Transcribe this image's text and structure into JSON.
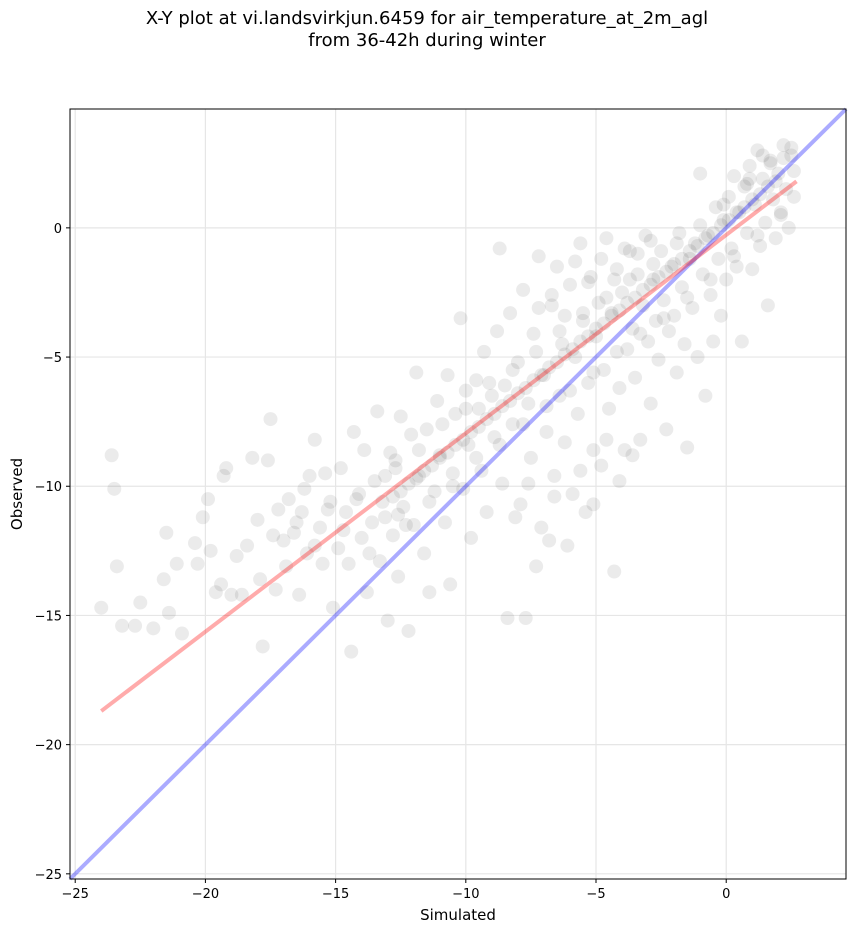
{
  "chart_data": {
    "type": "scatter",
    "title_line1": "X-Y plot at vi.landsvirkjun.6459 for air_temperature_at_2m_agl",
    "title_line2": "from 36-42h during winter",
    "xlabel": "Simulated",
    "ylabel": "Observed",
    "xlim": [
      -25.2,
      4.6
    ],
    "ylim": [
      -25.2,
      4.6
    ],
    "xticks": [
      -25,
      -20,
      -15,
      -10,
      -5,
      0
    ],
    "yticks": [
      -25,
      -20,
      -15,
      -10,
      -5,
      0
    ],
    "xtick_labels": [
      "−25",
      "−20",
      "−15",
      "−10",
      "−5",
      "0"
    ],
    "ytick_labels": [
      "−25",
      "−20",
      "−15",
      "−10",
      "−5",
      "0"
    ],
    "grid": true,
    "point_color": "#000000",
    "point_opacity": 0.08,
    "lines": [
      {
        "x": [
          -25.2,
          4.6
        ],
        "y": [
          -25.2,
          4.6
        ],
        "color": "#0000ff",
        "opacity": 0.33
      },
      {
        "x": [
          -24.0,
          2.7
        ],
        "y": [
          -18.7,
          1.8
        ],
        "color": "#ff0000",
        "opacity": 0.33
      }
    ],
    "points": [
      [
        -23.6,
        -8.8
      ],
      [
        -23.5,
        -10.1
      ],
      [
        -23.4,
        -13.1
      ],
      [
        -24.0,
        -14.7
      ],
      [
        -23.2,
        -15.4
      ],
      [
        -22.7,
        -15.4
      ],
      [
        -22.5,
        -14.5
      ],
      [
        -22.0,
        -15.5
      ],
      [
        -21.6,
        -13.6
      ],
      [
        -21.4,
        -14.9
      ],
      [
        -21.5,
        -11.8
      ],
      [
        -21.1,
        -13.0
      ],
      [
        -20.9,
        -15.7
      ],
      [
        -20.4,
        -12.2
      ],
      [
        -20.3,
        -13.0
      ],
      [
        -20.1,
        -11.2
      ],
      [
        -19.9,
        -10.5
      ],
      [
        -19.8,
        -12.5
      ],
      [
        -19.6,
        -14.1
      ],
      [
        -19.4,
        -13.8
      ],
      [
        -19.3,
        -9.6
      ],
      [
        -19.2,
        -9.3
      ],
      [
        -19.0,
        -14.2
      ],
      [
        -18.8,
        -12.7
      ],
      [
        -18.6,
        -14.2
      ],
      [
        -18.4,
        -12.3
      ],
      [
        -18.2,
        -8.9
      ],
      [
        -18.0,
        -11.3
      ],
      [
        -17.9,
        -13.6
      ],
      [
        -17.8,
        -16.2
      ],
      [
        -17.6,
        -9.0
      ],
      [
        -17.5,
        -7.4
      ],
      [
        -17.4,
        -11.9
      ],
      [
        -17.3,
        -14.0
      ],
      [
        -17.0,
        -12.1
      ],
      [
        -16.9,
        -13.1
      ],
      [
        -16.8,
        -10.5
      ],
      [
        -16.5,
        -11.4
      ],
      [
        -16.4,
        -14.2
      ],
      [
        -16.3,
        -11.0
      ],
      [
        -16.1,
        -12.6
      ],
      [
        -16.0,
        -9.6
      ],
      [
        -15.8,
        -8.2
      ],
      [
        -15.6,
        -11.6
      ],
      [
        -15.5,
        -13.0
      ],
      [
        -15.4,
        -9.5
      ],
      [
        -15.2,
        -10.6
      ],
      [
        -15.1,
        -14.7
      ],
      [
        -14.9,
        -12.4
      ],
      [
        -14.8,
        -9.3
      ],
      [
        -14.6,
        -11.0
      ],
      [
        -14.5,
        -13.0
      ],
      [
        -14.4,
        -16.4
      ],
      [
        -14.3,
        -7.9
      ],
      [
        -14.1,
        -10.3
      ],
      [
        -14.0,
        -12.0
      ],
      [
        -13.9,
        -8.6
      ],
      [
        -13.8,
        -14.1
      ],
      [
        -13.6,
        -11.4
      ],
      [
        -13.5,
        -9.8
      ],
      [
        -13.4,
        -7.1
      ],
      [
        -13.3,
        -12.9
      ],
      [
        -13.2,
        -10.6
      ],
      [
        -13.0,
        -15.2
      ],
      [
        -12.9,
        -8.7
      ],
      [
        -12.8,
        -11.9
      ],
      [
        -12.7,
        -9.3
      ],
      [
        -12.6,
        -13.5
      ],
      [
        -12.5,
        -7.3
      ],
      [
        -12.4,
        -10.8
      ],
      [
        -12.2,
        -15.6
      ],
      [
        -12.1,
        -8.0
      ],
      [
        -12.0,
        -11.5
      ],
      [
        -11.9,
        -5.6
      ],
      [
        -11.8,
        -9.6
      ],
      [
        -11.6,
        -12.6
      ],
      [
        -11.5,
        -7.8
      ],
      [
        -11.4,
        -14.1
      ],
      [
        -11.2,
        -10.2
      ],
      [
        -11.1,
        -6.7
      ],
      [
        -11.0,
        -8.8
      ],
      [
        -10.8,
        -11.4
      ],
      [
        -10.7,
        -5.7
      ],
      [
        -10.6,
        -13.8
      ],
      [
        -10.5,
        -9.5
      ],
      [
        -10.4,
        -7.2
      ],
      [
        -10.2,
        -3.5
      ],
      [
        -10.1,
        -10.1
      ],
      [
        -10.0,
        -6.3
      ],
      [
        -9.9,
        -8.4
      ],
      [
        -9.8,
        -12.0
      ],
      [
        -9.6,
        -5.9
      ],
      [
        -9.5,
        -7.0
      ],
      [
        -9.4,
        -9.4
      ],
      [
        -9.3,
        -4.8
      ],
      [
        -9.2,
        -11.0
      ],
      [
        -9.0,
        -6.5
      ],
      [
        -8.9,
        -8.1
      ],
      [
        -8.8,
        -4.0
      ],
      [
        -8.7,
        -0.8
      ],
      [
        -8.6,
        -9.9
      ],
      [
        -8.5,
        -6.1
      ],
      [
        -8.4,
        -15.1
      ],
      [
        -8.3,
        -3.3
      ],
      [
        -8.2,
        -7.6
      ],
      [
        -8.0,
        -5.2
      ],
      [
        -7.9,
        -10.7
      ],
      [
        -7.8,
        -2.4
      ],
      [
        -7.7,
        -15.1
      ],
      [
        -7.6,
        -6.8
      ],
      [
        -7.5,
        -8.9
      ],
      [
        -7.4,
        -4.1
      ],
      [
        -7.3,
        -13.1
      ],
      [
        -7.2,
        -1.1
      ],
      [
        -7.0,
        -5.7
      ],
      [
        -6.9,
        -7.9
      ],
      [
        -6.8,
        -12.1
      ],
      [
        -6.7,
        -3.0
      ],
      [
        -6.6,
        -9.6
      ],
      [
        -6.5,
        -1.5
      ],
      [
        -6.4,
        -6.5
      ],
      [
        -6.3,
        -4.5
      ],
      [
        -6.2,
        -8.3
      ],
      [
        -6.0,
        -2.2
      ],
      [
        -5.9,
        -10.3
      ],
      [
        -5.8,
        -5.0
      ],
      [
        -5.7,
        -7.2
      ],
      [
        -5.6,
        -0.6
      ],
      [
        -5.5,
        -3.6
      ],
      [
        -5.4,
        -11.0
      ],
      [
        -5.3,
        -6.0
      ],
      [
        -5.2,
        -1.9
      ],
      [
        -5.1,
        -8.6
      ],
      [
        -5.0,
        -4.2
      ],
      [
        -4.9,
        -2.9
      ],
      [
        -4.8,
        -9.2
      ],
      [
        -4.7,
        -5.5
      ],
      [
        -4.6,
        -0.4
      ],
      [
        -4.5,
        -7.0
      ],
      [
        -4.4,
        -3.3
      ],
      [
        -4.3,
        -13.3
      ],
      [
        -4.2,
        -1.6
      ],
      [
        -4.1,
        -6.2
      ],
      [
        -4.0,
        -2.5
      ],
      [
        -3.9,
        -8.6
      ],
      [
        -3.8,
        -4.7
      ],
      [
        -3.7,
        -0.9
      ],
      [
        -3.6,
        -3.9
      ],
      [
        -3.5,
        -5.8
      ],
      [
        -3.4,
        -1.8
      ],
      [
        -3.3,
        -8.2
      ],
      [
        -3.2,
        -3.0
      ],
      [
        -3.1,
        -0.3
      ],
      [
        -3.0,
        -4.4
      ],
      [
        -2.9,
        -6.8
      ],
      [
        -2.8,
        -2.0
      ],
      [
        -2.7,
        -3.6
      ],
      [
        -2.6,
        -5.1
      ],
      [
        -2.5,
        -0.9
      ],
      [
        -2.4,
        -2.8
      ],
      [
        -2.3,
        -7.8
      ],
      [
        -2.2,
        -4.0
      ],
      [
        -2.1,
        -1.5
      ],
      [
        -2.0,
        -3.4
      ],
      [
        -1.9,
        -5.6
      ],
      [
        -1.8,
        -0.2
      ],
      [
        -1.7,
        -2.3
      ],
      [
        -1.6,
        -4.5
      ],
      [
        -1.5,
        -8.5
      ],
      [
        -1.4,
        -1.2
      ],
      [
        -1.3,
        -3.1
      ],
      [
        -1.2,
        -0.6
      ],
      [
        -1.1,
        -5.0
      ],
      [
        -1.0,
        2.1
      ],
      [
        -0.9,
        -1.8
      ],
      [
        -0.8,
        -6.5
      ],
      [
        -0.7,
        -0.3
      ],
      [
        -0.6,
        -2.6
      ],
      [
        -0.5,
        -4.4
      ],
      [
        -0.4,
        0.8
      ],
      [
        -0.3,
        -1.2
      ],
      [
        -0.2,
        -3.4
      ],
      [
        -0.1,
        0.3
      ],
      [
        0.0,
        -2.0
      ],
      [
        0.1,
        1.2
      ],
      [
        0.2,
        -0.8
      ],
      [
        0.3,
        2.0
      ],
      [
        0.4,
        -1.5
      ],
      [
        0.5,
        0.6
      ],
      [
        0.6,
        -4.4
      ],
      [
        0.7,
        1.6
      ],
      [
        0.8,
        -0.2
      ],
      [
        0.9,
        2.4
      ],
      [
        1.0,
        -1.6
      ],
      [
        1.1,
        0.9
      ],
      [
        1.2,
        3.0
      ],
      [
        1.3,
        -0.7
      ],
      [
        1.4,
        1.9
      ],
      [
        1.5,
        0.2
      ],
      [
        1.6,
        -3.0
      ],
      [
        1.7,
        2.6
      ],
      [
        1.8,
        1.1
      ],
      [
        1.9,
        -0.4
      ],
      [
        2.0,
        2.1
      ],
      [
        2.1,
        0.5
      ],
      [
        2.2,
        3.2
      ],
      [
        2.3,
        1.5
      ],
      [
        2.4,
        0.0
      ],
      [
        2.5,
        2.8
      ],
      [
        2.6,
        1.2
      ],
      [
        -12.8,
        -10.4
      ],
      [
        -12.5,
        -10.2
      ],
      [
        -12.2,
        -9.9
      ],
      [
        -11.9,
        -9.7
      ],
      [
        -11.6,
        -9.4
      ],
      [
        -11.3,
        -9.2
      ],
      [
        -11.0,
        -8.9
      ],
      [
        -10.7,
        -8.7
      ],
      [
        -10.4,
        -8.4
      ],
      [
        -10.1,
        -8.2
      ],
      [
        -9.8,
        -7.9
      ],
      [
        -9.5,
        -7.7
      ],
      [
        -9.2,
        -7.4
      ],
      [
        -8.9,
        -7.2
      ],
      [
        -8.6,
        -6.9
      ],
      [
        -8.3,
        -6.7
      ],
      [
        -8.0,
        -6.4
      ],
      [
        -7.7,
        -6.2
      ],
      [
        -7.4,
        -5.9
      ],
      [
        -7.1,
        -5.7
      ],
      [
        -6.8,
        -5.4
      ],
      [
        -6.5,
        -5.2
      ],
      [
        -6.2,
        -4.9
      ],
      [
        -5.9,
        -4.7
      ],
      [
        -5.6,
        -4.4
      ],
      [
        -5.3,
        -4.2
      ],
      [
        -5.0,
        -3.9
      ],
      [
        -4.7,
        -3.7
      ],
      [
        -4.4,
        -3.4
      ],
      [
        -4.1,
        -3.2
      ],
      [
        -3.8,
        -2.9
      ],
      [
        -3.5,
        -2.7
      ],
      [
        -3.2,
        -2.4
      ],
      [
        -2.9,
        -2.2
      ],
      [
        -2.6,
        -1.9
      ],
      [
        -2.3,
        -1.7
      ],
      [
        -2.0,
        -1.4
      ],
      [
        -1.7,
        -1.2
      ],
      [
        -1.4,
        -0.9
      ],
      [
        -1.1,
        -0.7
      ],
      [
        -0.8,
        -0.4
      ],
      [
        -0.5,
        -0.2
      ],
      [
        -0.2,
        0.1
      ],
      [
        0.1,
        0.3
      ],
      [
        0.4,
        0.6
      ],
      [
        0.7,
        0.8
      ],
      [
        1.0,
        1.1
      ],
      [
        1.3,
        1.3
      ],
      [
        1.6,
        1.6
      ],
      [
        1.9,
        1.8
      ],
      [
        -13.1,
        -11.2
      ],
      [
        -12.7,
        -9.0
      ],
      [
        -12.3,
        -11.5
      ],
      [
        -11.8,
        -8.6
      ],
      [
        -11.4,
        -10.6
      ],
      [
        -10.9,
        -7.6
      ],
      [
        -10.5,
        -10.0
      ],
      [
        -10.0,
        -7.0
      ],
      [
        -9.6,
        -8.9
      ],
      [
        -9.1,
        -6.0
      ],
      [
        -8.7,
        -8.4
      ],
      [
        -8.2,
        -5.5
      ],
      [
        -7.8,
        -7.6
      ],
      [
        -7.3,
        -4.8
      ],
      [
        -6.9,
        -6.9
      ],
      [
        -6.4,
        -4.0
      ],
      [
        -6.0,
        -6.3
      ],
      [
        -5.5,
        -3.3
      ],
      [
        -5.1,
        -5.6
      ],
      [
        -4.6,
        -2.7
      ],
      [
        -4.2,
        -4.8
      ],
      [
        -3.7,
        -2.0
      ],
      [
        -3.3,
        -4.1
      ],
      [
        -2.8,
        -1.4
      ],
      [
        -2.4,
        -3.5
      ],
      [
        -1.9,
        -0.6
      ],
      [
        -1.5,
        -2.7
      ],
      [
        -1.0,
        0.1
      ],
      [
        -0.6,
        -2.0
      ],
      [
        -0.1,
        0.9
      ],
      [
        0.3,
        -1.1
      ],
      [
        0.8,
        1.7
      ],
      [
        1.2,
        -0.3
      ],
      [
        1.7,
        2.5
      ],
      [
        2.1,
        0.6
      ],
      [
        2.5,
        3.1
      ],
      [
        2.6,
        2.2
      ],
      [
        2.2,
        2.7
      ],
      [
        1.4,
        2.8
      ],
      [
        0.9,
        1.9
      ],
      [
        -17.2,
        -10.9
      ],
      [
        -16.6,
        -11.8
      ],
      [
        -16.2,
        -10.1
      ],
      [
        -15.8,
        -12.3
      ],
      [
        -15.3,
        -10.9
      ],
      [
        -14.7,
        -11.7
      ],
      [
        -14.2,
        -10.5
      ],
      [
        -13.7,
        -12.6
      ],
      [
        -13.1,
        -9.6
      ],
      [
        -12.6,
        -11.1
      ],
      [
        -7.2,
        -3.1
      ],
      [
        -6.7,
        -2.6
      ],
      [
        -6.2,
        -3.4
      ],
      [
        -5.8,
        -1.3
      ],
      [
        -5.3,
        -2.1
      ],
      [
        -4.8,
        -1.2
      ],
      [
        -4.3,
        -2.0
      ],
      [
        -3.9,
        -0.8
      ],
      [
        -3.4,
        -1.0
      ],
      [
        -2.9,
        -0.5
      ],
      [
        -8.1,
        -11.2
      ],
      [
        -7.6,
        -9.9
      ],
      [
        -7.1,
        -11.6
      ],
      [
        -6.6,
        -10.4
      ],
      [
        -6.1,
        -12.3
      ],
      [
        -5.6,
        -9.4
      ],
      [
        -5.1,
        -10.7
      ],
      [
        -4.6,
        -8.2
      ],
      [
        -4.1,
        -9.8
      ],
      [
        -3.6,
        -8.8
      ]
    ]
  }
}
